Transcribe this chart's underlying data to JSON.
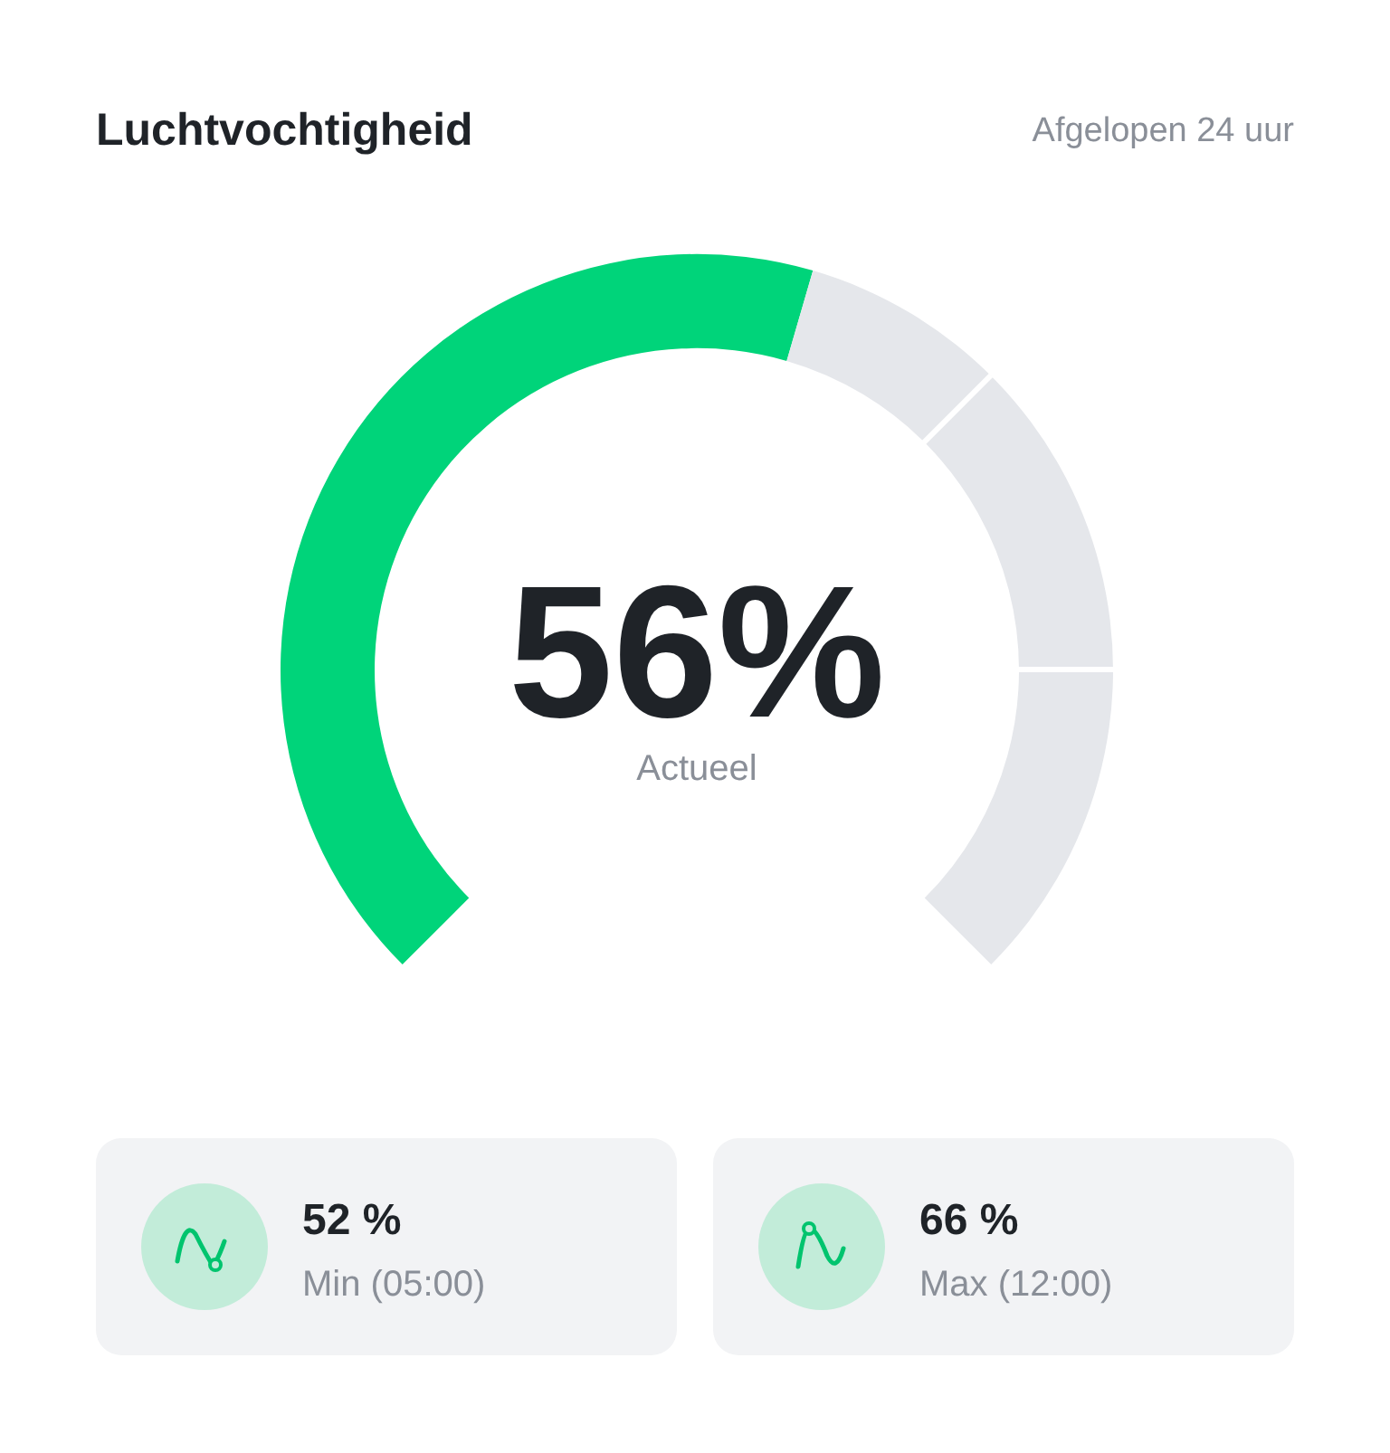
{
  "chart_data": {
    "type": "donut",
    "title": "Luchtvochtigheid",
    "subtitle": "Afgelopen 24 uur",
    "categories": [
      null,
      null
    ],
    "values": [
      56,
      44
    ],
    "colors": [
      "#00d47a",
      "#e5e7eb"
    ],
    "annotations": [
      "56%",
      "Actueel",
      "52 %",
      "Min (05:00)",
      "66 %",
      "Max (12:00)"
    ]
  }
}
